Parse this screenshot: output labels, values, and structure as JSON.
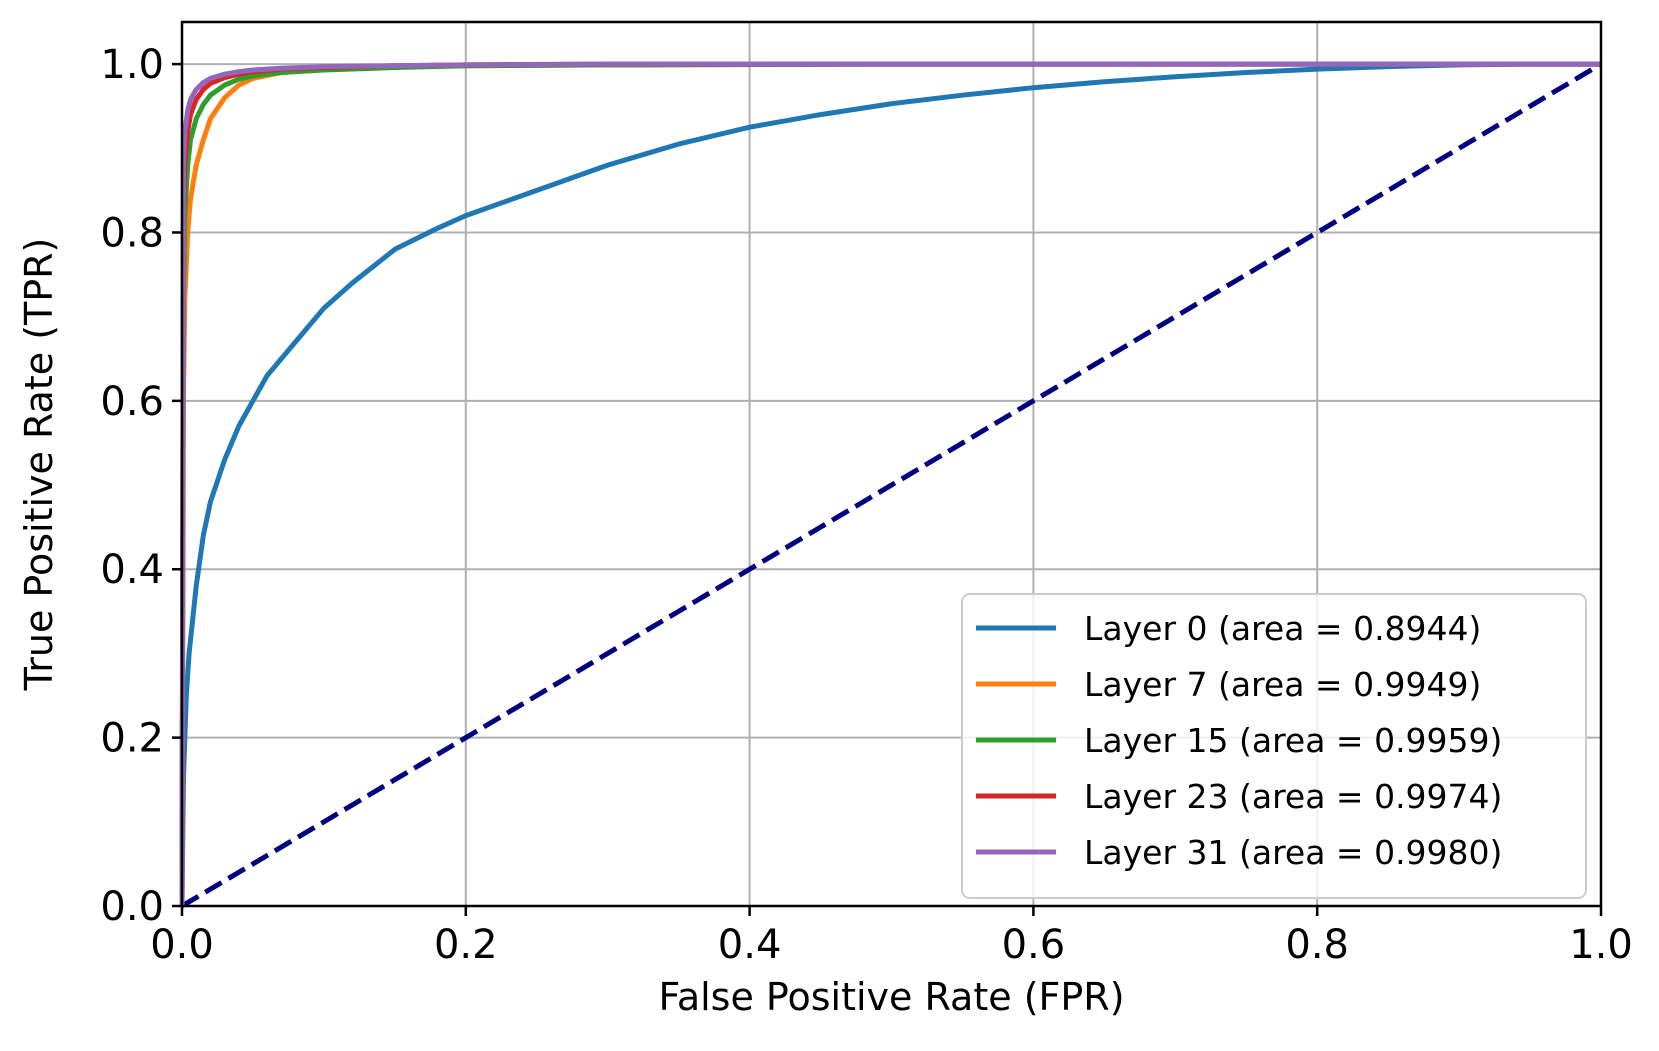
{
  "chart_data": {
    "type": "line",
    "title": "",
    "xlabel": "False Positive Rate (FPR)",
    "ylabel": "True Positive Rate (TPR)",
    "xlim": [
      0.0,
      1.0
    ],
    "ylim": [
      0.0,
      1.05
    ],
    "grid": true,
    "legend_position": "lower-right",
    "x_ticks": [
      0.0,
      0.2,
      0.4,
      0.6,
      0.8,
      1.0
    ],
    "x_tick_labels": [
      "0.0",
      "0.2",
      "0.4",
      "0.6",
      "0.8",
      "1.0"
    ],
    "y_ticks": [
      0.0,
      0.2,
      0.4,
      0.6,
      0.8,
      1.0
    ],
    "y_tick_labels": [
      "0.0",
      "0.2",
      "0.4",
      "0.6",
      "0.8",
      "1.0"
    ],
    "series": [
      {
        "name": "Layer 0 (area = 0.8944)",
        "color": "#1f77b4",
        "x": [
          0.0,
          0.001,
          0.003,
          0.005,
          0.01,
          0.015,
          0.02,
          0.03,
          0.04,
          0.05,
          0.06,
          0.08,
          0.1,
          0.12,
          0.15,
          0.18,
          0.2,
          0.25,
          0.3,
          0.35,
          0.4,
          0.45,
          0.5,
          0.55,
          0.6,
          0.65,
          0.7,
          0.75,
          0.8,
          0.85,
          0.9,
          0.95,
          1.0
        ],
        "y": [
          0.0,
          0.15,
          0.25,
          0.3,
          0.38,
          0.44,
          0.48,
          0.53,
          0.57,
          0.6,
          0.63,
          0.67,
          0.71,
          0.74,
          0.78,
          0.805,
          0.82,
          0.85,
          0.88,
          0.905,
          0.925,
          0.94,
          0.953,
          0.963,
          0.972,
          0.979,
          0.985,
          0.99,
          0.994,
          0.997,
          0.999,
          1.0,
          1.0
        ]
      },
      {
        "name": "Layer 7 (area = 0.9949)",
        "color": "#ff7f0e",
        "x": [
          0.0,
          0.001,
          0.002,
          0.004,
          0.006,
          0.01,
          0.015,
          0.02,
          0.03,
          0.04,
          0.05,
          0.07,
          0.1,
          0.15,
          0.2,
          0.3,
          0.5,
          1.0
        ],
        "y": [
          0.0,
          0.6,
          0.72,
          0.8,
          0.84,
          0.88,
          0.91,
          0.935,
          0.96,
          0.975,
          0.983,
          0.99,
          0.994,
          0.997,
          0.998,
          0.999,
          1.0,
          1.0
        ]
      },
      {
        "name": "Layer 15 (area = 0.9959)",
        "color": "#2ca02c",
        "x": [
          0.0,
          0.001,
          0.002,
          0.004,
          0.006,
          0.01,
          0.015,
          0.02,
          0.03,
          0.04,
          0.05,
          0.07,
          0.1,
          0.15,
          0.2,
          0.3,
          0.5,
          1.0
        ],
        "y": [
          0.0,
          0.72,
          0.82,
          0.88,
          0.91,
          0.935,
          0.952,
          0.963,
          0.975,
          0.982,
          0.986,
          0.99,
          0.993,
          0.996,
          0.998,
          0.999,
          1.0,
          1.0
        ]
      },
      {
        "name": "Layer 23 (area = 0.9974)",
        "color": "#d62728",
        "x": [
          0.0,
          0.001,
          0.002,
          0.004,
          0.006,
          0.01,
          0.015,
          0.02,
          0.03,
          0.04,
          0.05,
          0.07,
          0.1,
          0.15,
          0.2,
          0.3,
          0.5,
          1.0
        ],
        "y": [
          0.0,
          0.82,
          0.88,
          0.92,
          0.94,
          0.958,
          0.97,
          0.977,
          0.984,
          0.988,
          0.991,
          0.994,
          0.996,
          0.998,
          0.999,
          1.0,
          1.0,
          1.0
        ]
      },
      {
        "name": "Layer 31 (area = 0.9980)",
        "color": "#9467bd",
        "x": [
          0.0,
          0.001,
          0.002,
          0.004,
          0.006,
          0.01,
          0.015,
          0.02,
          0.03,
          0.04,
          0.05,
          0.07,
          0.1,
          0.15,
          0.2,
          0.3,
          0.5,
          1.0
        ],
        "y": [
          0.0,
          0.88,
          0.92,
          0.945,
          0.958,
          0.97,
          0.978,
          0.983,
          0.988,
          0.991,
          0.993,
          0.995,
          0.997,
          0.998,
          0.999,
          1.0,
          1.0,
          1.0
        ]
      }
    ],
    "reference_line": {
      "x": [
        0.0,
        1.0
      ],
      "y": [
        0.0,
        1.0
      ],
      "color": "#000080",
      "style": "dashed"
    }
  }
}
